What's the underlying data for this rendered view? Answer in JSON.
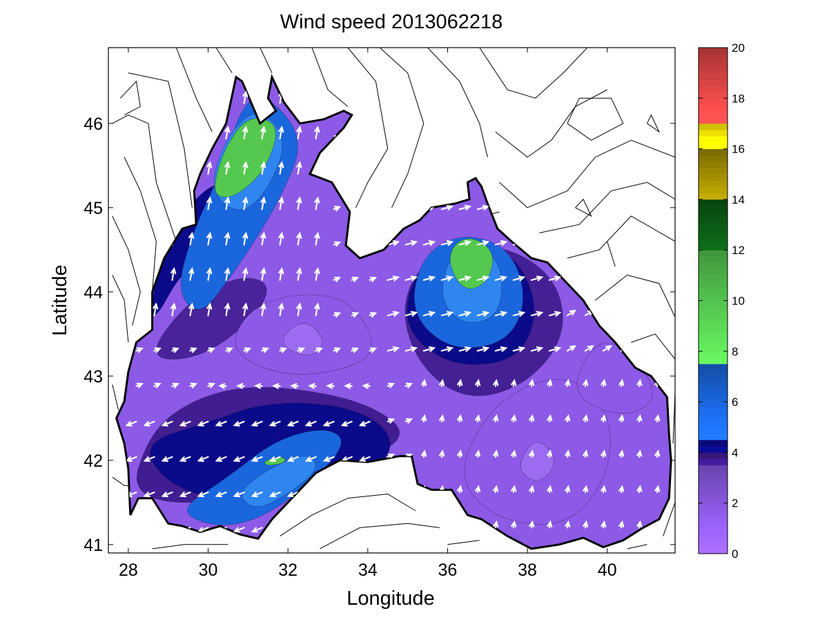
{
  "chart_data": {
    "type": "contour_map",
    "title": "Wind speed 2013062218",
    "xlabel": "Longitude",
    "ylabel": "Latitude",
    "xlim": [
      27.5,
      41.7
    ],
    "ylim": [
      40.9,
      46.9
    ],
    "xticks": [
      "28",
      "30",
      "32",
      "34",
      "36",
      "38",
      "40"
    ],
    "yticks": [
      "41",
      "42",
      "43",
      "44",
      "45",
      "46"
    ],
    "colorbar": {
      "range": [
        0,
        20
      ],
      "ticks": [
        "0",
        "2",
        "4",
        "6",
        "8",
        "10",
        "12",
        "14",
        "16",
        "18",
        "20"
      ],
      "bands": [
        {
          "from": 0,
          "to": 3.5,
          "color": "#8c5ae6"
        },
        {
          "from": 3.5,
          "to": 4.0,
          "color": "#3c1a8c"
        },
        {
          "from": 4.0,
          "to": 4.5,
          "color": "#0a0a8a"
        },
        {
          "from": 4.5,
          "to": 7.5,
          "color": "#1a66dd"
        },
        {
          "from": 7.5,
          "to": 12,
          "color": "#55c850"
        },
        {
          "from": 12,
          "to": 14,
          "color": "#0a5a14"
        },
        {
          "from": 14,
          "to": 16,
          "color": "#a08c00"
        },
        {
          "from": 16,
          "to": 17,
          "color": "#ffee00"
        },
        {
          "from": 17,
          "to": 20,
          "color": "#dd4444"
        }
      ]
    },
    "maxima": [
      {
        "lon": 31.0,
        "lat": 45.7,
        "speed": 9.0
      },
      {
        "lon": 36.7,
        "lat": 44.4,
        "speed": 8.5
      },
      {
        "lon": 32.0,
        "lat": 42.0,
        "speed": 7.8
      }
    ],
    "minima": [
      {
        "lon": 32.5,
        "lat": 43.5,
        "speed": 0.5
      },
      {
        "lon": 38.2,
        "lat": 42.0,
        "speed": 0.5
      }
    ],
    "vector_field": "white wind arrows over sea",
    "land_contours": "black isolines over land"
  }
}
